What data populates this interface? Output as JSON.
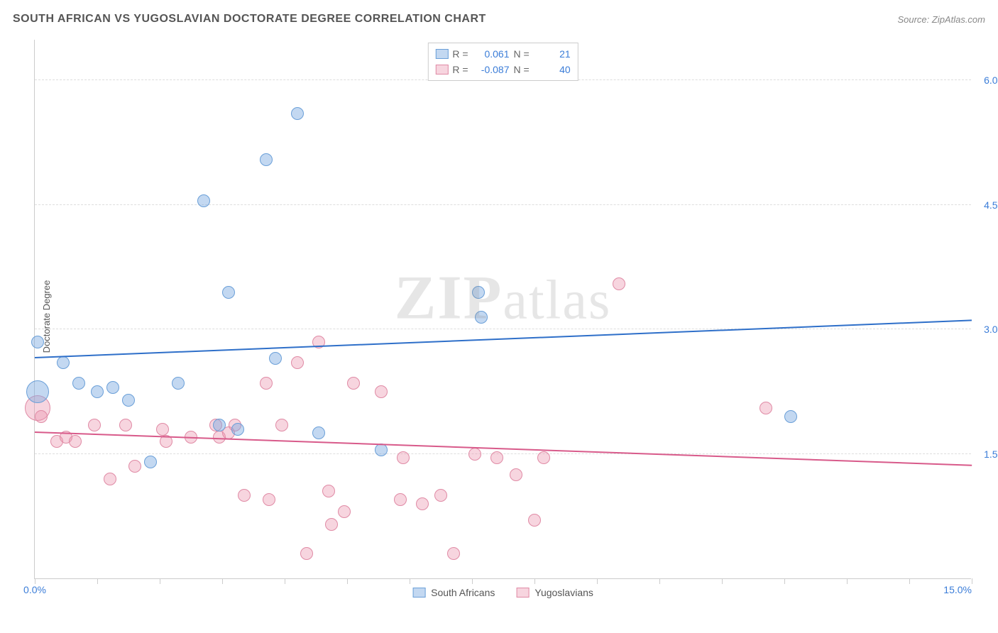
{
  "header": {
    "title": "SOUTH AFRICAN VS YUGOSLAVIAN DOCTORATE DEGREE CORRELATION CHART",
    "source_label": "Source: ",
    "source_name": "ZipAtlas.com"
  },
  "watermark": {
    "zip": "ZIP",
    "atlas": "atlas"
  },
  "chart": {
    "type": "scatter",
    "y_axis_title": "Doctorate Degree",
    "x_range": [
      0.0,
      15.0
    ],
    "y_range": [
      0.0,
      6.5
    ],
    "x_ticks": [
      0,
      1,
      2,
      3,
      4,
      5,
      6,
      7,
      8,
      9,
      10,
      11,
      12,
      13,
      14,
      15
    ],
    "x_tick_labels": {
      "0": "0.0%",
      "15": "15.0%"
    },
    "y_gridlines": [
      1.5,
      3.0,
      4.5,
      6.0
    ],
    "y_tick_labels": {
      "1.5": "1.5%",
      "3.0": "3.0%",
      "4.5": "4.5%",
      "6.0": "6.0%"
    },
    "background_color": "#ffffff",
    "grid_color": "#dddddd",
    "axis_color": "#cccccc",
    "tick_label_color": "#3b7dd8",
    "axis_title_fontsize": 13,
    "tick_label_fontsize": 14,
    "title_fontsize": 16,
    "title_color": "#555555"
  },
  "series": {
    "south_africans": {
      "label": "South Africans",
      "fill_color": "rgba(122,168,225,0.45)",
      "stroke_color": "#6a9fd8",
      "point_radius": 9,
      "trend": {
        "y_start": 2.65,
        "y_end": 3.1,
        "color": "#2e6fc9",
        "width": 2
      },
      "R_label": "R =",
      "R_value": "0.061",
      "N_label": "N =",
      "N_value": "21",
      "points": [
        {
          "x": 0.05,
          "y": 2.85
        },
        {
          "x": 0.05,
          "y": 2.25,
          "r": 16
        },
        {
          "x": 0.45,
          "y": 2.6
        },
        {
          "x": 0.7,
          "y": 2.35
        },
        {
          "x": 1.0,
          "y": 2.25
        },
        {
          "x": 1.25,
          "y": 2.3
        },
        {
          "x": 1.5,
          "y": 2.15
        },
        {
          "x": 1.85,
          "y": 1.4
        },
        {
          "x": 2.3,
          "y": 2.35
        },
        {
          "x": 2.7,
          "y": 4.55
        },
        {
          "x": 2.95,
          "y": 1.85
        },
        {
          "x": 3.1,
          "y": 3.45
        },
        {
          "x": 3.25,
          "y": 1.8
        },
        {
          "x": 3.7,
          "y": 5.05
        },
        {
          "x": 3.85,
          "y": 2.65
        },
        {
          "x": 4.2,
          "y": 5.6
        },
        {
          "x": 4.55,
          "y": 1.75
        },
        {
          "x": 5.55,
          "y": 1.55
        },
        {
          "x": 7.1,
          "y": 3.45
        },
        {
          "x": 7.15,
          "y": 3.15
        },
        {
          "x": 12.1,
          "y": 1.95
        }
      ]
    },
    "yugoslavians": {
      "label": "Yugoslavians",
      "fill_color": "rgba(235,150,175,0.40)",
      "stroke_color": "#e08aa5",
      "point_radius": 9,
      "trend": {
        "y_start": 1.75,
        "y_end": 1.35,
        "color": "#d85a8a",
        "width": 2
      },
      "R_label": "R =",
      "R_value": "-0.087",
      "N_label": "N =",
      "N_value": "40",
      "points": [
        {
          "x": 0.05,
          "y": 2.05,
          "r": 18
        },
        {
          "x": 0.1,
          "y": 1.95
        },
        {
          "x": 0.35,
          "y": 1.65
        },
        {
          "x": 0.5,
          "y": 1.7
        },
        {
          "x": 0.65,
          "y": 1.65
        },
        {
          "x": 0.95,
          "y": 1.85
        },
        {
          "x": 1.2,
          "y": 1.2
        },
        {
          "x": 1.45,
          "y": 1.85
        },
        {
          "x": 1.6,
          "y": 1.35
        },
        {
          "x": 2.05,
          "y": 1.8
        },
        {
          "x": 2.1,
          "y": 1.65
        },
        {
          "x": 2.5,
          "y": 1.7
        },
        {
          "x": 2.9,
          "y": 1.85
        },
        {
          "x": 2.95,
          "y": 1.7
        },
        {
          "x": 3.1,
          "y": 1.75
        },
        {
          "x": 3.2,
          "y": 1.85
        },
        {
          "x": 3.35,
          "y": 1.0
        },
        {
          "x": 3.7,
          "y": 2.35
        },
        {
          "x": 3.75,
          "y": 0.95
        },
        {
          "x": 3.95,
          "y": 1.85
        },
        {
          "x": 4.2,
          "y": 2.6
        },
        {
          "x": 4.35,
          "y": 0.3
        },
        {
          "x": 4.55,
          "y": 2.85
        },
        {
          "x": 4.7,
          "y": 1.05
        },
        {
          "x": 4.75,
          "y": 0.65
        },
        {
          "x": 4.95,
          "y": 0.8
        },
        {
          "x": 5.1,
          "y": 2.35
        },
        {
          "x": 5.55,
          "y": 2.25
        },
        {
          "x": 5.85,
          "y": 0.95
        },
        {
          "x": 5.9,
          "y": 1.45
        },
        {
          "x": 6.2,
          "y": 0.9
        },
        {
          "x": 6.5,
          "y": 1.0
        },
        {
          "x": 6.7,
          "y": 0.3
        },
        {
          "x": 7.05,
          "y": 1.5
        },
        {
          "x": 7.4,
          "y": 1.45
        },
        {
          "x": 7.7,
          "y": 1.25
        },
        {
          "x": 8.0,
          "y": 0.7
        },
        {
          "x": 8.15,
          "y": 1.45
        },
        {
          "x": 9.35,
          "y": 3.55
        },
        {
          "x": 11.7,
          "y": 2.05
        }
      ]
    }
  }
}
